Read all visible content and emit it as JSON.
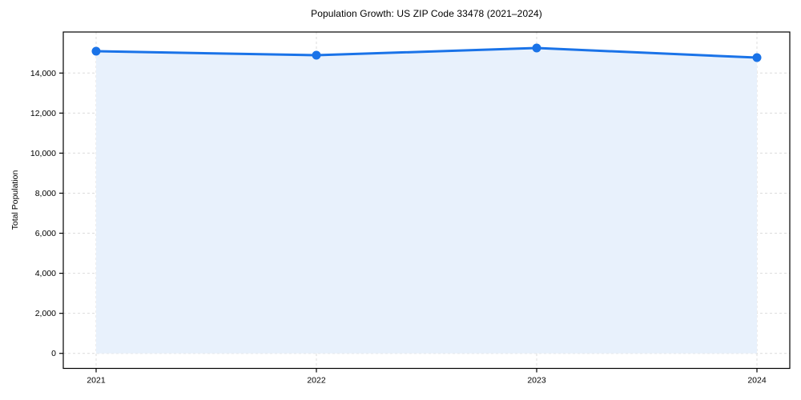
{
  "figure": {
    "title": "Population Growth: US ZIP Code 33478 (2021–2024)"
  },
  "chart_data": {
    "type": "area",
    "title": "Population Growth: US ZIP Code 33478 (2021–2024)",
    "xlabel": "",
    "ylabel": "Total Population",
    "x": [
      "2021",
      "2022",
      "2023",
      "2024"
    ],
    "series": [
      {
        "name": "Total Population",
        "values": [
          15090,
          14890,
          15250,
          14770
        ]
      }
    ],
    "yticks": [
      0,
      2000,
      4000,
      6000,
      8000,
      10000,
      12000,
      14000
    ],
    "ytick_labels": [
      "0",
      "2,000",
      "4,000",
      "6,000",
      "8,000",
      "10,000",
      "12,000",
      "14,000"
    ],
    "ylim": [
      -750,
      16050
    ],
    "grid": true,
    "grid_style": "dashed",
    "legend": "none",
    "marker": "circle",
    "colors": {
      "line": "#1a73e8",
      "marker": "#1a73e8",
      "area_fill": "#e8f1fc",
      "grid": "#dcdcdc",
      "spine": "#000000",
      "text": "#000000",
      "background": "#ffffff"
    }
  }
}
